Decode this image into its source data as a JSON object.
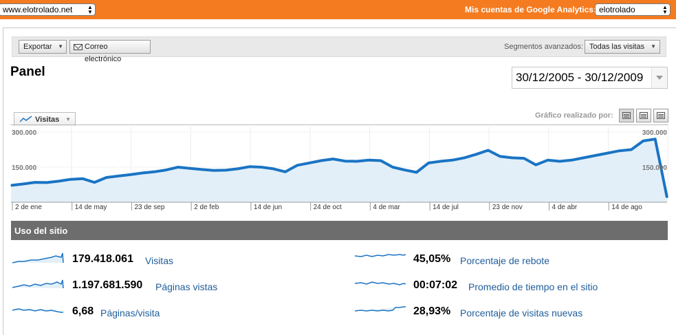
{
  "topbar": {
    "site_selector": "www.elotrolado.net",
    "accounts_label": "Mis cuentas de Google Analytics:",
    "account_selector": "elotrolado"
  },
  "toolbar": {
    "export_label": "Exportar",
    "email_label": "Correo electrónico",
    "segments_label": "Segmentos avanzados:",
    "segments_value": "Todas las visitas"
  },
  "page": {
    "title": "Panel",
    "date_range": "30/12/2005 - 30/12/2009"
  },
  "graph_controls": {
    "metric_tab": "Visitas",
    "graph_by_label": "Gráfico realizado por:"
  },
  "chart_data": {
    "type": "area",
    "series": [
      {
        "name": "Visitas",
        "values": [
          72000,
          78000,
          85000,
          84000,
          90000,
          98000,
          101000,
          85000,
          106000,
          112000,
          118000,
          125000,
          130000,
          138000,
          150000,
          145000,
          140000,
          136000,
          137000,
          143000,
          152000,
          150000,
          143000,
          130000,
          158000,
          168000,
          178000,
          185000,
          176000,
          175000,
          180000,
          178000,
          150000,
          138000,
          128000,
          168000,
          175000,
          180000,
          190000,
          205000,
          222000,
          196000,
          190000,
          188000,
          160000,
          180000,
          175000,
          180000,
          190000,
          200000,
          210000,
          220000,
          225000,
          262000,
          270000,
          20000
        ]
      }
    ],
    "x_tick_labels": [
      "2 de ene",
      "14 de may",
      "23 de sep",
      "2 de feb",
      "14 de jun",
      "24 de oct",
      "4 de mar",
      "14 de jul",
      "23 de nov",
      "4 de abr",
      "14 de ago"
    ],
    "y_tick_labels": [
      "300.000",
      "150.000"
    ],
    "ylim": [
      0,
      300000
    ],
    "colors": {
      "line": "#1a74c4",
      "fill": "#e3eff8",
      "grid": "#d8d8d8"
    }
  },
  "usage": {
    "title": "Uso del sitio",
    "metrics": [
      {
        "value": "179.418.061",
        "label": "Visitas"
      },
      {
        "value": "45,05%",
        "label": "Porcentaje de rebote"
      },
      {
        "value": "1.197.681.590",
        "label": "Páginas vistas"
      },
      {
        "value": "00:07:02",
        "label": "Promedio de tiempo en el sitio"
      },
      {
        "value": "6,68",
        "label": "Páginas/visita"
      },
      {
        "value": "28,93%",
        "label": "Porcentaje de visitas nuevas"
      }
    ]
  }
}
